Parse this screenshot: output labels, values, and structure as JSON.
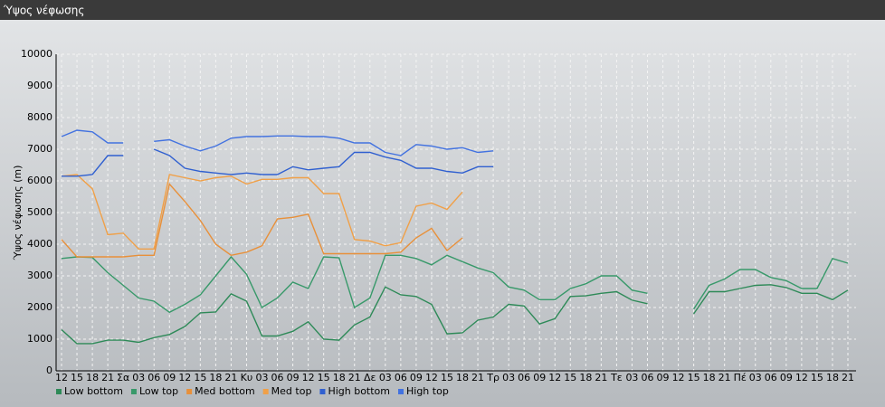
{
  "chart_data": {
    "type": "line",
    "title": "Ύψος νέφωσης",
    "y_label": "Ύψος νέφωσης (m)",
    "categories": [
      "12",
      "15",
      "18",
      "21",
      "Σα",
      "03",
      "06",
      "09",
      "12",
      "15",
      "18",
      "21",
      "Κυ",
      "03",
      "06",
      "09",
      "12",
      "15",
      "18",
      "21",
      "Δε",
      "03",
      "06",
      "09",
      "12",
      "15",
      "18",
      "21",
      "Τρ",
      "03",
      "06",
      "09",
      "12",
      "15",
      "18",
      "21",
      "Τε",
      "03",
      "06",
      "09",
      "12",
      "15",
      "18",
      "21",
      "Πέ",
      "03",
      "06",
      "09",
      "12",
      "15",
      "18",
      "21"
    ],
    "ylim": [
      0,
      10000
    ],
    "yticks": [
      0,
      1000,
      2000,
      3000,
      4000,
      5000,
      6000,
      7000,
      8000,
      9000,
      10000
    ],
    "grid": true,
    "series": [
      {
        "name": "Low bottom",
        "color": "#2e8a58",
        "values": [
          1300,
          860,
          860,
          970,
          970,
          900,
          1050,
          1150,
          1400,
          1830,
          1860,
          2430,
          2200,
          1100,
          1100,
          1250,
          1550,
          1000,
          970,
          1450,
          1700,
          2650,
          2400,
          2350,
          2100,
          1170,
          1200,
          1600,
          1700,
          2100,
          2050,
          1480,
          1650,
          2350,
          2370,
          2450,
          2500,
          2230,
          2120,
          null,
          null,
          1800,
          2500,
          2500,
          2600,
          2700,
          2720,
          2630,
          2450,
          2450,
          2250,
          2550
        ]
      },
      {
        "name": "Low top",
        "color": "#38996a",
        "values": [
          3550,
          3600,
          3580,
          3100,
          2700,
          2300,
          2200,
          1850,
          2100,
          2400,
          3000,
          3600,
          3050,
          2000,
          2300,
          2800,
          2600,
          3600,
          3570,
          2000,
          2300,
          3650,
          3650,
          3550,
          3350,
          3650,
          3450,
          3250,
          3100,
          2650,
          2550,
          2250,
          2250,
          2600,
          2750,
          3000,
          3000,
          2550,
          2450,
          null,
          null,
          1950,
          2700,
          2900,
          3200,
          3200,
          2950,
          2850,
          2600,
          2600,
          3550,
          3400
        ]
      },
      {
        "name": "Med bottom",
        "color": "#e8903a",
        "values": [
          4150,
          3600,
          3600,
          3600,
          3600,
          3650,
          3650,
          5900,
          5350,
          4750,
          4000,
          3650,
          3750,
          3950,
          4800,
          4850,
          4950,
          3700,
          3700,
          3700,
          3700,
          3700,
          3750,
          4200,
          4500,
          3800,
          4200,
          null,
          null,
          null,
          null,
          null,
          null,
          null,
          null,
          null,
          null,
          null,
          null,
          null,
          null,
          null,
          null,
          null,
          null,
          null,
          null,
          null,
          null,
          null,
          null,
          null
        ]
      },
      {
        "name": "Med top",
        "color": "#f0a048",
        "values": [
          6150,
          6200,
          5750,
          4300,
          4350,
          3850,
          3850,
          6200,
          6100,
          6000,
          6100,
          6150,
          5900,
          6050,
          6050,
          6100,
          6100,
          5600,
          5600,
          4150,
          4100,
          3950,
          4050,
          5200,
          5300,
          5100,
          5650,
          null,
          null,
          null,
          null,
          null,
          null,
          null,
          null,
          null,
          null,
          null,
          null,
          null,
          null,
          null,
          null,
          null,
          null,
          null,
          null,
          null,
          null,
          null,
          null,
          null
        ]
      },
      {
        "name": "High bottom",
        "color": "#3060d0",
        "values": [
          6150,
          6150,
          6200,
          6800,
          6800,
          null,
          7000,
          6800,
          6400,
          6300,
          6250,
          6200,
          6250,
          6200,
          6200,
          6450,
          6350,
          6400,
          6450,
          6900,
          6900,
          6750,
          6650,
          6400,
          6400,
          6300,
          6250,
          6450,
          6450,
          null,
          null,
          null,
          null,
          null,
          null,
          null,
          null,
          null,
          null,
          null,
          null,
          null,
          null,
          null,
          null,
          null,
          null,
          null,
          null,
          null,
          null,
          null
        ]
      },
      {
        "name": "High top",
        "color": "#4272e0",
        "values": [
          7400,
          7600,
          7550,
          7200,
          7200,
          null,
          7250,
          7300,
          7100,
          6950,
          7100,
          7350,
          7400,
          7400,
          7420,
          7420,
          7400,
          7400,
          7350,
          7200,
          7200,
          6900,
          6800,
          7150,
          7100,
          7000,
          7050,
          6900,
          6950,
          null,
          null,
          null,
          null,
          null,
          null,
          null,
          null,
          null,
          null,
          null,
          null,
          null,
          null,
          null,
          null,
          null,
          null,
          null,
          null,
          null,
          null,
          null
        ]
      }
    ]
  }
}
